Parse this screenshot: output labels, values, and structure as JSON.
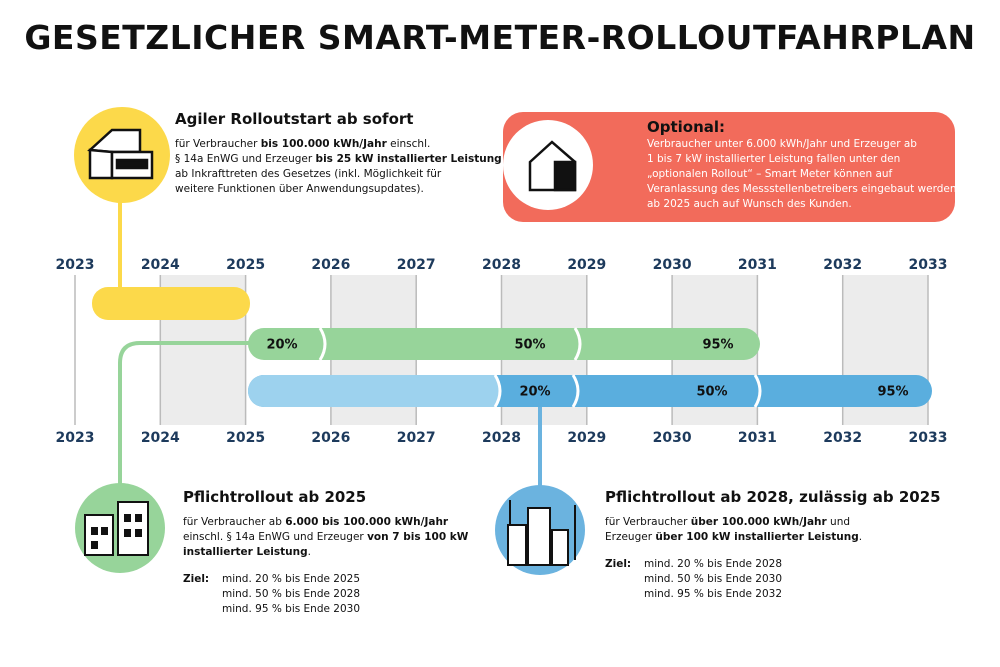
{
  "title": "GESETZLICHER SMART-METER-ROLLOUTFAHRPLAN",
  "years": [
    "2023",
    "2024",
    "2025",
    "2026",
    "2027",
    "2028",
    "2029",
    "2030",
    "2031",
    "2032",
    "2033"
  ],
  "agile": {
    "title": "Agiler Rolloutstart ab sofort",
    "lines": [
      [
        "für Verbraucher ",
        "bis 100.000 kWh/Jahr",
        " einschl."
      ],
      [
        "§ 14a EnWG und Erzeuger ",
        "bis 25 kW installierter Leistung"
      ],
      [
        "ab Inkrafttreten des Gesetzes (inkl. Möglichkeit für"
      ],
      [
        "weitere Funktionen über Anwendungsupdates)."
      ]
    ]
  },
  "optional": {
    "title": "Optional:",
    "lines": [
      "Verbraucher unter 6.000 kWh/Jahr und Erzeuger ab",
      "1 bis 7 kW installierter Leistung fallen unter den",
      "„optionalen Rollout“ – Smart Meter können auf",
      "Veranlassung des Messstellenbetreibers eingebaut werden,",
      "ab 2025 auch auf Wunsch des Kunden."
    ]
  },
  "bars": {
    "green": [
      "20%",
      "50%",
      "95%"
    ],
    "blue": [
      "20%",
      "50%",
      "95%"
    ]
  },
  "pflicht2025": {
    "title": "Pflichtrollout ab 2025",
    "lines": [
      [
        "für Verbraucher ab ",
        "6.000 bis 100.000 kWh/Jahr"
      ],
      [
        "einschl. § 14a EnWG und Erzeuger ",
        "von 7 bis 100 kW"
      ],
      [
        "installierter Leistung",
        "."
      ]
    ],
    "goal_label": "Ziel:",
    "goals": [
      "mind. 20 % bis Ende 2025",
      "mind. 50 % bis Ende 2028",
      "mind. 95 % bis Ende 2030"
    ]
  },
  "pflicht2028": {
    "title": "Pflichtrollout ab 2028, zulässig ab 2025",
    "lines": [
      [
        "für Verbraucher ",
        "über 100.000 kWh/Jahr",
        " und"
      ],
      [
        "Erzeuger ",
        "über 100 kW installierter Leistung",
        "."
      ]
    ],
    "goal_label": "Ziel:",
    "goals": [
      "mind. 20 % bis Ende 2028",
      "mind. 50 % bis Ende 2030",
      "mind. 95 % bis Ende 2032"
    ]
  }
}
